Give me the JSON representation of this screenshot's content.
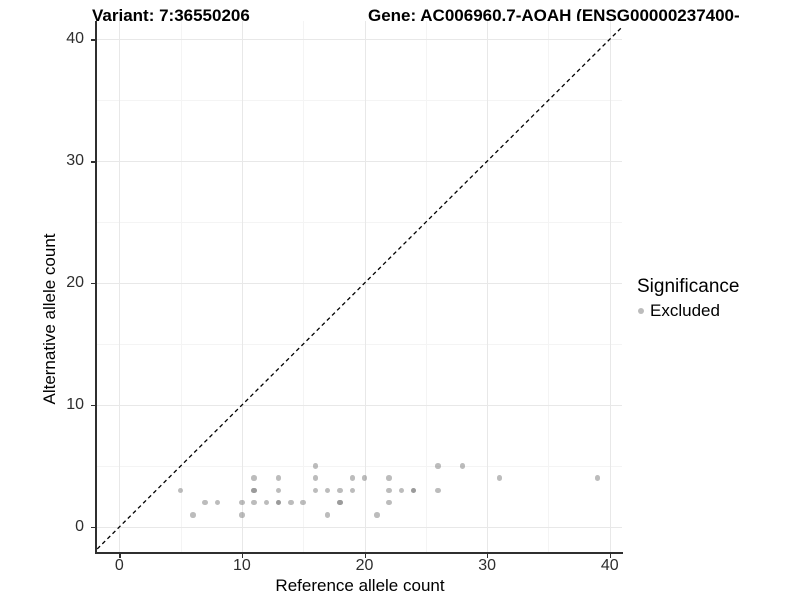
{
  "chart_data": {
    "type": "scatter",
    "titles": {
      "variant": "Variant: 7:36550206",
      "gene": "Gene: AC006960.7-AOAH (ENSG00000237400-"
    },
    "xlabel": "Reference allele count",
    "ylabel": "Alternative allele count",
    "xlim": [
      -1.9,
      41.0
    ],
    "ylim": [
      -2.05,
      41.5
    ],
    "x_ticks": [
      0,
      10,
      20,
      30,
      40
    ],
    "y_ticks": [
      0,
      10,
      20,
      30,
      40
    ],
    "x_minor_ticks": [
      5,
      15,
      25,
      35
    ],
    "y_minor_ticks": [
      5,
      15,
      25,
      35
    ],
    "grid": true,
    "legend": {
      "title": "Significance",
      "position": "right"
    },
    "identity_line": {
      "shape": "y=x",
      "linetype": "dashed",
      "color": "#000000"
    },
    "series": [
      {
        "name": "Excluded",
        "point_color": "rgba(122,122,122,0.5)",
        "legend_color": "#bcbcbc",
        "points": [
          [
            5,
            3
          ],
          [
            6,
            1
          ],
          [
            7,
            2
          ],
          [
            8,
            2
          ],
          [
            10,
            1
          ],
          [
            10,
            2
          ],
          [
            11,
            2
          ],
          [
            11,
            3
          ],
          [
            11,
            3
          ],
          [
            11,
            4
          ],
          [
            12,
            2
          ],
          [
            13,
            2
          ],
          [
            13,
            2
          ],
          [
            13,
            3
          ],
          [
            13,
            4
          ],
          [
            14,
            2
          ],
          [
            15,
            2
          ],
          [
            16,
            3
          ],
          [
            16,
            4
          ],
          [
            16,
            5
          ],
          [
            17,
            1
          ],
          [
            17,
            3
          ],
          [
            18,
            2
          ],
          [
            18,
            2
          ],
          [
            18,
            3
          ],
          [
            19,
            3
          ],
          [
            19,
            4
          ],
          [
            20,
            4
          ],
          [
            21,
            1
          ],
          [
            22,
            2
          ],
          [
            22,
            3
          ],
          [
            22,
            4
          ],
          [
            23,
            3
          ],
          [
            24,
            3
          ],
          [
            24,
            3
          ],
          [
            26,
            3
          ],
          [
            26,
            5
          ],
          [
            28,
            5
          ],
          [
            31,
            4
          ],
          [
            39,
            4
          ]
        ]
      }
    ],
    "colors": {
      "grid_major": "#e8e8e8",
      "grid_minor": "#f4f4f4",
      "axis": "#2f2f2f",
      "tick_text": "#2e2e2e"
    }
  }
}
